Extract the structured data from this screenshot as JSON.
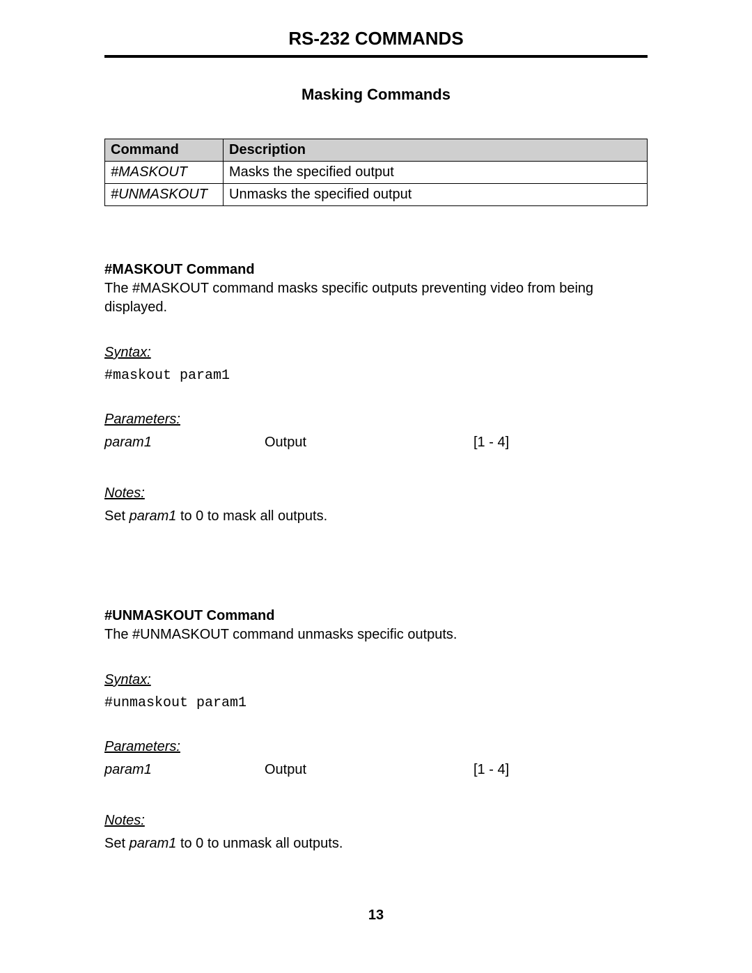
{
  "page": {
    "title": "RS-232 COMMANDS",
    "section_title": "Masking Commands",
    "page_number": "13"
  },
  "table": {
    "headers": {
      "command": "Command",
      "description": "Description"
    },
    "rows": [
      {
        "command": "#MASKOUT",
        "description": "Masks the specified output"
      },
      {
        "command": "#UNMASKOUT",
        "description": "Unmasks the specified output"
      }
    ],
    "header_bg": "#cfcfcf",
    "border_color": "#000000"
  },
  "maskout": {
    "heading": "#MASKOUT Command",
    "description": "The #MASKOUT command masks specific outputs preventing video from being displayed.",
    "syntax_label": "Syntax:",
    "syntax_code": "#maskout param1",
    "parameters_label": "Parameters:",
    "param_name": "param1",
    "param_type": "Output",
    "param_range": "[1 - 4]",
    "notes_label": "Notes:",
    "notes_prefix": "Set ",
    "notes_pname": "param1",
    "notes_suffix": " to 0 to mask all outputs."
  },
  "unmaskout": {
    "heading": "#UNMASKOUT Command",
    "description": "The #UNMASKOUT command unmasks specific outputs.",
    "syntax_label": "Syntax:",
    "syntax_code": "#unmaskout param1",
    "parameters_label": "Parameters:",
    "param_name": "param1",
    "param_type": "Output",
    "param_range": "[1 - 4]",
    "notes_label": "Notes:",
    "notes_prefix": "Set ",
    "notes_pname": "param1",
    "notes_suffix": " to 0 to unmask all outputs."
  },
  "style": {
    "background_color": "#ffffff",
    "text_color": "#000000",
    "title_fontsize": 26,
    "section_title_fontsize": 22,
    "body_fontsize": 20,
    "mono_font": "Courier New",
    "main_rule_width": 4
  }
}
